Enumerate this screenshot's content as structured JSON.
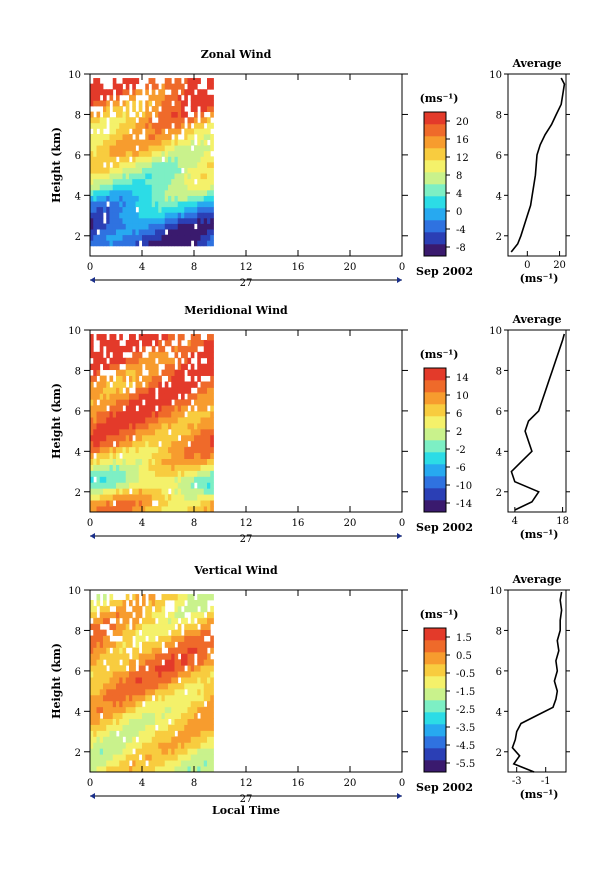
{
  "chart_data": [
    {
      "type": "heatmap",
      "title": "Zonal Wind",
      "ylabel": "Height (km)",
      "unit": "(ms⁻¹)",
      "date_label": "Sep 2002",
      "day_label": "27",
      "x_ticks": [
        "0",
        "4",
        "8",
        "12",
        "16",
        "20",
        "0"
      ],
      "y_ticks": [
        "2",
        "4",
        "6",
        "8",
        "10"
      ],
      "xlim": [
        0,
        24
      ],
      "ylim": [
        1,
        10
      ],
      "data_time_range": [
        0,
        9.5
      ],
      "data_height_range": [
        1.5,
        9.8
      ],
      "colorbar": {
        "ticks": [
          "20",
          "16",
          "12",
          "8",
          "4",
          "0",
          "-4",
          "-8"
        ],
        "range": [
          -10,
          22
        ]
      },
      "field_profile": {
        "heights": [
          1.5,
          2.5,
          3.5,
          4.5,
          5.5,
          6.5,
          7.5,
          8.5,
          9.5
        ],
        "values": [
          -6,
          -5,
          0,
          6,
          9,
          12,
          14,
          17,
          21
        ]
      },
      "average_panel": {
        "title": "Average",
        "xlabel": "(ms⁻¹)",
        "x_ticks": [
          "0",
          "20"
        ],
        "y_ticks": [
          "2",
          "4",
          "6",
          "8",
          "10"
        ],
        "xlim": [
          -12,
          24
        ],
        "profile": {
          "height": [
            1.2,
            1.6,
            2.0,
            2.5,
            3.0,
            3.5,
            4.0,
            4.5,
            5.0,
            5.5,
            6.0,
            6.5,
            7.0,
            7.5,
            8.0,
            8.5,
            9.0,
            9.5,
            9.8
          ],
          "value": [
            -10,
            -6,
            -4,
            -2,
            0,
            2,
            3,
            4,
            5,
            5.5,
            6,
            8,
            11,
            15,
            18,
            21,
            22,
            23,
            21
          ]
        }
      }
    },
    {
      "type": "heatmap",
      "title": "Meridional Wind",
      "ylabel": "Height (km)",
      "unit": "(ms⁻¹)",
      "date_label": "Sep 2002",
      "day_label": "27",
      "x_ticks": [
        "0",
        "4",
        "8",
        "12",
        "16",
        "20",
        "0"
      ],
      "y_ticks": [
        "2",
        "4",
        "6",
        "8",
        "10"
      ],
      "xlim": [
        0,
        24
      ],
      "ylim": [
        1,
        10
      ],
      "data_time_range": [
        0,
        9.5
      ],
      "data_height_range": [
        1.0,
        9.8
      ],
      "colorbar": {
        "ticks": [
          "14",
          "10",
          "6",
          "2",
          "-2",
          "-6",
          "-10",
          "-14"
        ],
        "range": [
          -16,
          16
        ]
      },
      "field_profile": {
        "heights": [
          1.5,
          2.5,
          3.5,
          4.5,
          5.5,
          6.5,
          7.5,
          8.5,
          9.5
        ],
        "values": [
          8,
          0,
          6,
          10,
          11,
          12,
          11,
          13,
          15
        ]
      },
      "average_panel": {
        "title": "Average",
        "xlabel": "(ms⁻¹)",
        "x_ticks": [
          "4",
          "18"
        ],
        "y_ticks": [
          "2",
          "4",
          "6",
          "8",
          "10"
        ],
        "xlim": [
          2,
          19
        ],
        "profile": {
          "height": [
            1.1,
            1.5,
            2.0,
            2.5,
            3.0,
            3.5,
            4.0,
            4.5,
            5.0,
            5.5,
            6.0,
            6.5,
            7.0,
            7.5,
            8.0,
            8.5,
            9.0,
            9.5,
            9.8
          ],
          "value": [
            4,
            9,
            11,
            4,
            3,
            6,
            9,
            8,
            7,
            8,
            11,
            12,
            13,
            14,
            15,
            16,
            17,
            18,
            18.5
          ]
        }
      }
    },
    {
      "type": "heatmap",
      "title": "Vertical Wind",
      "ylabel": "Height (km)",
      "xlabel": "Local Time",
      "unit": "(ms⁻¹)",
      "date_label": "Sep 2002",
      "day_label": "27",
      "x_ticks": [
        "0",
        "4",
        "8",
        "12",
        "16",
        "20",
        "0"
      ],
      "y_ticks": [
        "2",
        "4",
        "6",
        "8",
        "10"
      ],
      "xlim": [
        0,
        24
      ],
      "ylim": [
        1,
        10
      ],
      "data_time_range": [
        0,
        9.5
      ],
      "data_height_range": [
        1.0,
        9.8
      ],
      "colorbar": {
        "ticks": [
          "1.5",
          "0.5",
          "-0.5",
          "-1.5",
          "-2.5",
          "-3.5",
          "-4.5",
          "-5.5"
        ],
        "range": [
          -6,
          2
        ]
      },
      "field_profile": {
        "heights": [
          1.5,
          2.5,
          3.5,
          4.5,
          5.5,
          6.5,
          7.5,
          8.5,
          9.5
        ],
        "values": [
          -1.0,
          -0.8,
          -0.6,
          -0.2,
          0.3,
          0.6,
          0.2,
          -0.3,
          -0.8
        ]
      },
      "average_panel": {
        "title": "Average",
        "xlabel": "(ms⁻¹)",
        "x_ticks": [
          "-3",
          "-1"
        ],
        "y_ticks": [
          "2",
          "4",
          "6",
          "8",
          "10"
        ],
        "xlim": [
          -3.6,
          0.4
        ],
        "profile": {
          "height": [
            1.0,
            1.4,
            1.8,
            2.2,
            2.6,
            3.0,
            3.4,
            3.8,
            4.2,
            4.6,
            5.0,
            5.5,
            6.0,
            6.5,
            7.0,
            7.5,
            8.0,
            8.5,
            9.0,
            9.5,
            9.9
          ],
          "value": [
            -1.8,
            -3.2,
            -2.8,
            -3.3,
            -3.1,
            -3.0,
            -2.7,
            -1.6,
            -0.5,
            -0.3,
            -0.2,
            -0.4,
            -0.2,
            -0.3,
            -0.1,
            -0.2,
            0.0,
            0.0,
            0.1,
            0.0,
            0.1
          ]
        }
      }
    }
  ]
}
